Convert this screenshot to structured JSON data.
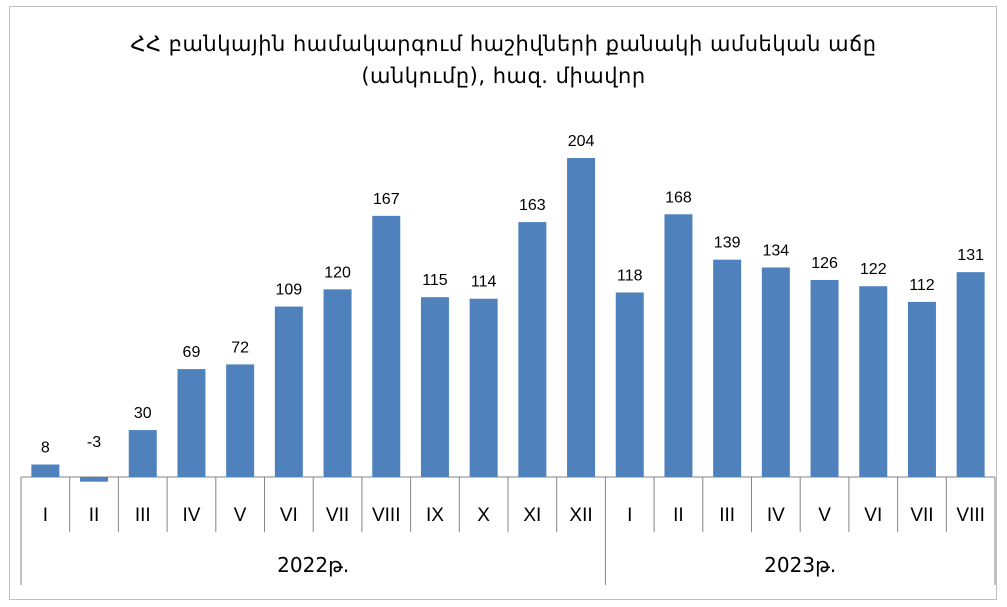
{
  "chart_data": {
    "type": "bar",
    "title_line1": "ՀՀ բանկային համակարգում հաշիվների քանակի ամսեկան աճը",
    "title_line2": "(անկումը), հազ. միավոր",
    "categories": [
      "I",
      "II",
      "III",
      "IV",
      "V",
      "VI",
      "VII",
      "VIII",
      "IX",
      "X",
      "XI",
      "XII",
      "I",
      "II",
      "III",
      "IV",
      "V",
      "VI",
      "VII",
      "VIII"
    ],
    "values": [
      8,
      -3,
      30,
      69,
      72,
      109,
      120,
      167,
      115,
      114,
      163,
      204,
      118,
      168,
      139,
      134,
      126,
      122,
      112,
      131
    ],
    "groups": [
      {
        "label": "2022թ.",
        "count": 12
      },
      {
        "label": "2023թ.",
        "count": 8
      }
    ],
    "bar_color": "#4f81bd",
    "grid": false,
    "legend": "none"
  }
}
